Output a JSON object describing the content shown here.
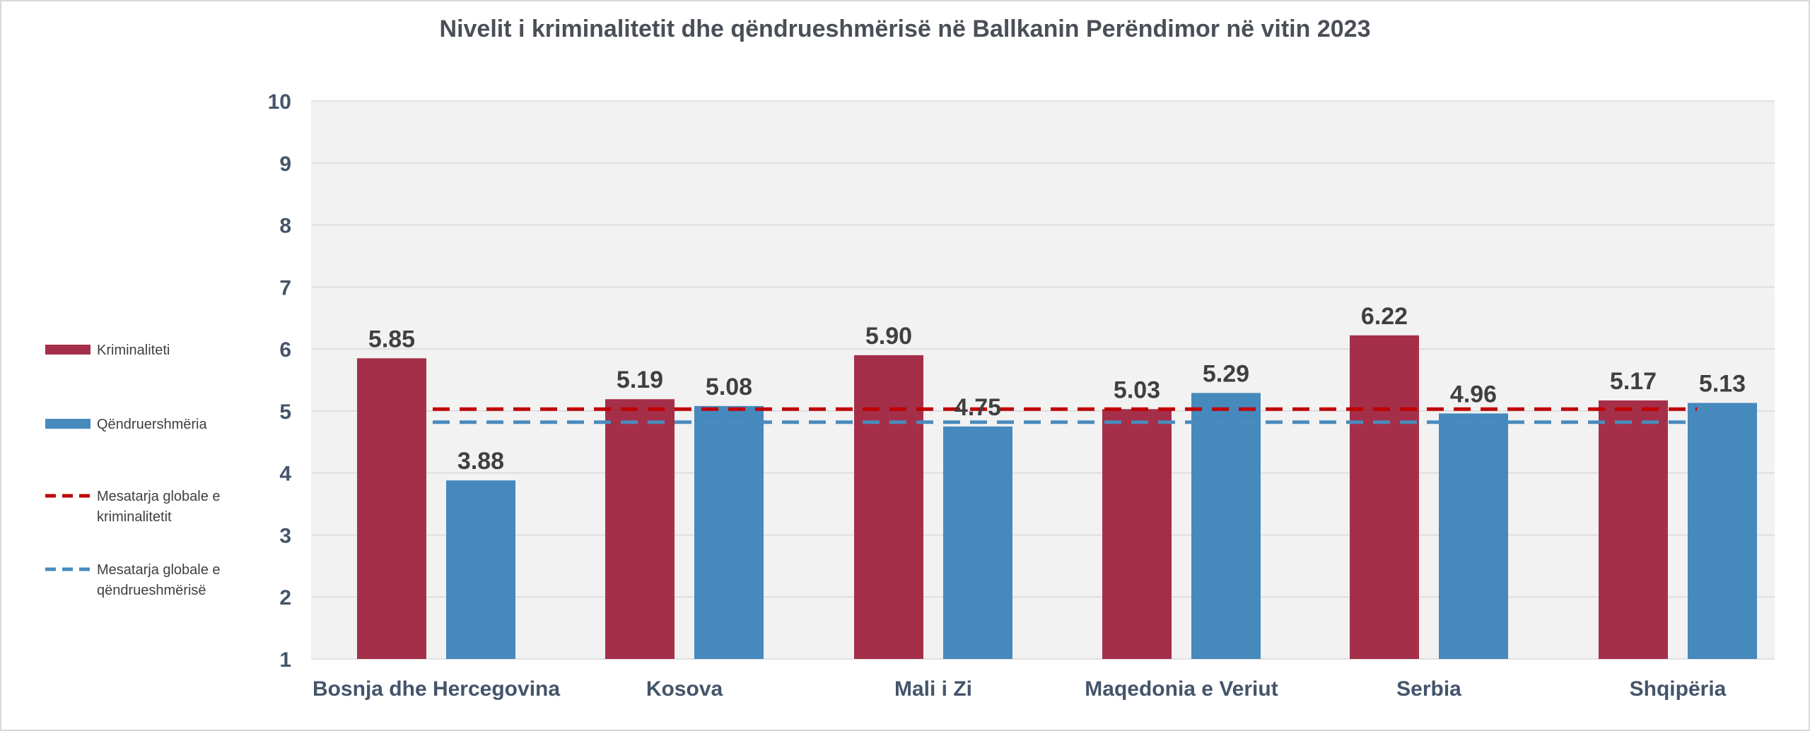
{
  "chart_data": {
    "type": "bar",
    "title": "Nivelit i kriminalitetit dhe qëndrueshmërisë në Ballkanin Perëndimor në vitin 2023",
    "categories": [
      "Bosnja dhe Hercegovina",
      "Kosova",
      "Mali i Zi",
      "Maqedonia e Veriut",
      "Serbia",
      "Shqipëria"
    ],
    "series": [
      {
        "name": "Kriminaliteti",
        "color": "#a52f49",
        "values": [
          5.85,
          5.19,
          5.9,
          5.03,
          6.22,
          5.17
        ],
        "labels": [
          "5.85",
          "5.19",
          "5.90",
          "5.03",
          "6.22",
          "5.17"
        ]
      },
      {
        "name": "Qëndruershmëria",
        "color": "#4689bd",
        "values": [
          3.88,
          5.08,
          4.75,
          5.29,
          4.96,
          5.13
        ],
        "labels": [
          "3.88",
          "5.08",
          "4.75",
          "5.29",
          "4.96",
          "5.13"
        ]
      }
    ],
    "reference_lines": [
      {
        "name": "Mesatarja globale e kriminalitetit",
        "name_lines": [
          "Mesatarja globale e",
          "kriminalitetit"
        ],
        "value": 5.03,
        "color": "#c00000",
        "style": "dashed"
      },
      {
        "name": "Mesatarja globale e qëndrueshmërisë",
        "name_lines": [
          "Mesatarja globale e",
          "qëndrueshmërisë"
        ],
        "value": 4.82,
        "color": "#4a8bbd",
        "style": "dashed"
      }
    ],
    "ylim": [
      1,
      10
    ],
    "yticks": [
      "1",
      "2",
      "3",
      "4",
      "5",
      "6",
      "7",
      "8",
      "9",
      "10"
    ],
    "xlabel": "",
    "ylabel": "",
    "grid": true,
    "legend_position": "left",
    "plot_background": "#f2f2f2",
    "gridline_color": "#d9d9d9"
  }
}
